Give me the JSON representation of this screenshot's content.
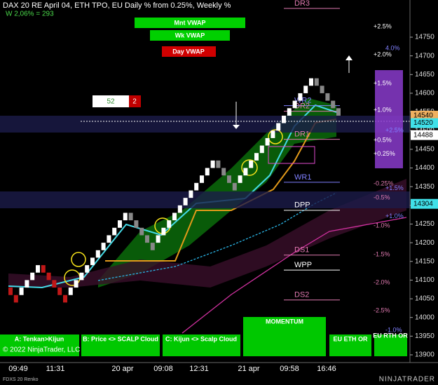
{
  "header": {
    "title": "DAX 20  RE April 04, ETH TPO, EU Daily % from 0.25%, Weekly %",
    "subtitle": "W 2,06% = 293"
  },
  "vwap_buttons": [
    "Mnt VWAP",
    "Wk VWAP",
    "Day VWAP"
  ],
  "counter": {
    "left": 52,
    "right": 2
  },
  "price_axis": {
    "ylim": [
      13890,
      14850
    ],
    "yticks": [
      13900,
      13950,
      14000,
      14050,
      14100,
      14150,
      14200,
      14250,
      14300,
      14350,
      14400,
      14450,
      14500,
      14550,
      14600,
      14650,
      14700,
      14750
    ]
  },
  "price_tags": [
    14540,
    14520,
    14488,
    14304
  ],
  "bricks": {
    "size": 20,
    "closes": [
      14060,
      14040,
      14080,
      14100,
      14120,
      14140,
      14120,
      14100,
      14080,
      14060,
      14040,
      14080,
      14100,
      14120,
      14140,
      14160,
      14180,
      14200,
      14220,
      14240,
      14260,
      14280,
      14260,
      14240,
      14220,
      14200,
      14180,
      14220,
      14240,
      14260,
      14280,
      14300,
      14320,
      14340,
      14360,
      14380,
      14400,
      14420,
      14400,
      14380,
      14360,
      14340,
      14380,
      14400,
      14420,
      14440,
      14460,
      14480,
      14500,
      14520,
      14540,
      14560,
      14580,
      14600,
      14620,
      14640,
      14620,
      14600,
      14580,
      14560,
      14540
    ]
  },
  "levels": [
    {
      "label": "DR3",
      "price": 14840
    },
    {
      "label": "WR2",
      "price": 14580
    },
    {
      "label": "DR2",
      "price": 14565
    },
    {
      "label": "DR1",
      "price": 14490
    },
    {
      "label": "WR1",
      "price": 14375
    },
    {
      "label": "DPP",
      "price": 14300
    },
    {
      "label": "DS1",
      "price": 14180
    },
    {
      "label": "WPP",
      "price": 14140
    },
    {
      "label": "DS2",
      "price": 14060
    }
  ],
  "daily_pct": [
    {
      "label": "+2.5%",
      "price": 14778
    },
    {
      "label": "+2.0%",
      "price": 14703
    },
    {
      "label": "+1.5%",
      "price": 14626
    },
    {
      "label": "+1.0%",
      "price": 14555
    },
    {
      "label": "+0.5%",
      "price": 14474
    },
    {
      "label": "+0.25%",
      "price": 14437
    },
    {
      "label": "-0.25%",
      "price": 14358
    },
    {
      "label": "-0.5%",
      "price": 14320
    },
    {
      "label": "-1.0%",
      "price": 14245
    },
    {
      "label": "-1.5%",
      "price": 14168
    },
    {
      "label": "-2.0%",
      "price": 14093
    },
    {
      "label": "-2.5%",
      "price": 14018
    }
  ],
  "weekly_pct": [
    {
      "label": "4.0%",
      "price": 14720
    },
    {
      "label": "+2.5%",
      "price": 14500
    },
    {
      "label": "+1.5%",
      "price": 14345
    },
    {
      "label": "+1.0%",
      "price": 14270
    },
    {
      "label": "-1.0%",
      "price": 13965
    }
  ],
  "time_labels": [
    "09:49",
    "11:31",
    "20 apr",
    "09:08",
    "12:31",
    "21 apr",
    "09:58",
    "16:46"
  ],
  "bottom_buttons": [
    "A: Tenkan>Kijun",
    "B: Price <> SCALP Cloud",
    "C: Kijun <> Scalp Cloud",
    "MOMENTUM",
    "EU ETH OR",
    "EU RTH OR"
  ],
  "footer": {
    "copyright": "© 2022 NinjaTrader, LLC",
    "instrument": "FDXS 20 Renko",
    "brand": "NINJATRADER"
  }
}
